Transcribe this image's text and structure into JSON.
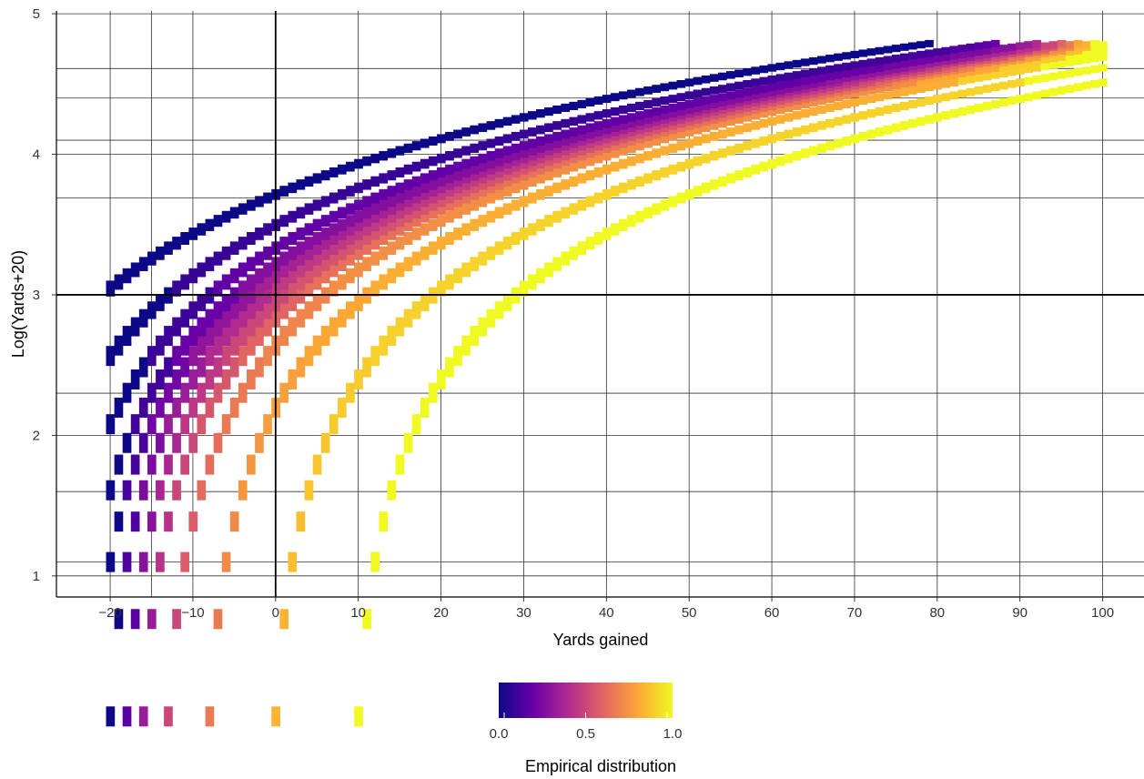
{
  "chart_data": {
    "type": "heatmap",
    "title": "",
    "xlabel": "Yards gained",
    "ylabel": "Log(Yards+20)",
    "xlim": [
      -26.5,
      105
    ],
    "ylim": [
      0.85,
      5.02
    ],
    "x_ticks": [
      -20,
      -10,
      0,
      10,
      20,
      30,
      40,
      50,
      60,
      70,
      80,
      90,
      100
    ],
    "x_tick_labels": [
      "−20",
      "−10",
      "0",
      "10",
      "20",
      "30",
      "40",
      "50",
      "60",
      "70",
      "80",
      "90",
      "100"
    ],
    "y_ticks": [
      1,
      2,
      3,
      4,
      5
    ],
    "y_tick_labels": [
      "1",
      "2",
      "3",
      "4",
      "5"
    ],
    "grid": true,
    "y_minor_grid": [
      1.1,
      1.6,
      2.3,
      3.69,
      4.1,
      4.4,
      4.61
    ],
    "x_minor_grid": [
      -15
    ],
    "reference_lines": {
      "x": 0,
      "y": 3
    },
    "curve": "y = ln(x + 20)",
    "band": {
      "x_from": -20,
      "x_to": 99,
      "step": 1,
      "offsets": [
        -20,
        -12,
        -7,
        -4,
        -2,
        0,
        2,
        4,
        7,
        12,
        20,
        30
      ]
    },
    "legend": {
      "title": "Empirical distribution",
      "position": "bottom",
      "ticks": [
        "0.0",
        "0.5",
        "1.0"
      ],
      "range": [
        0.0,
        1.0
      ],
      "palette": [
        "#0d0887",
        "#6a00a8",
        "#b12a90",
        "#e16462",
        "#fca636",
        "#f0f921"
      ]
    }
  }
}
